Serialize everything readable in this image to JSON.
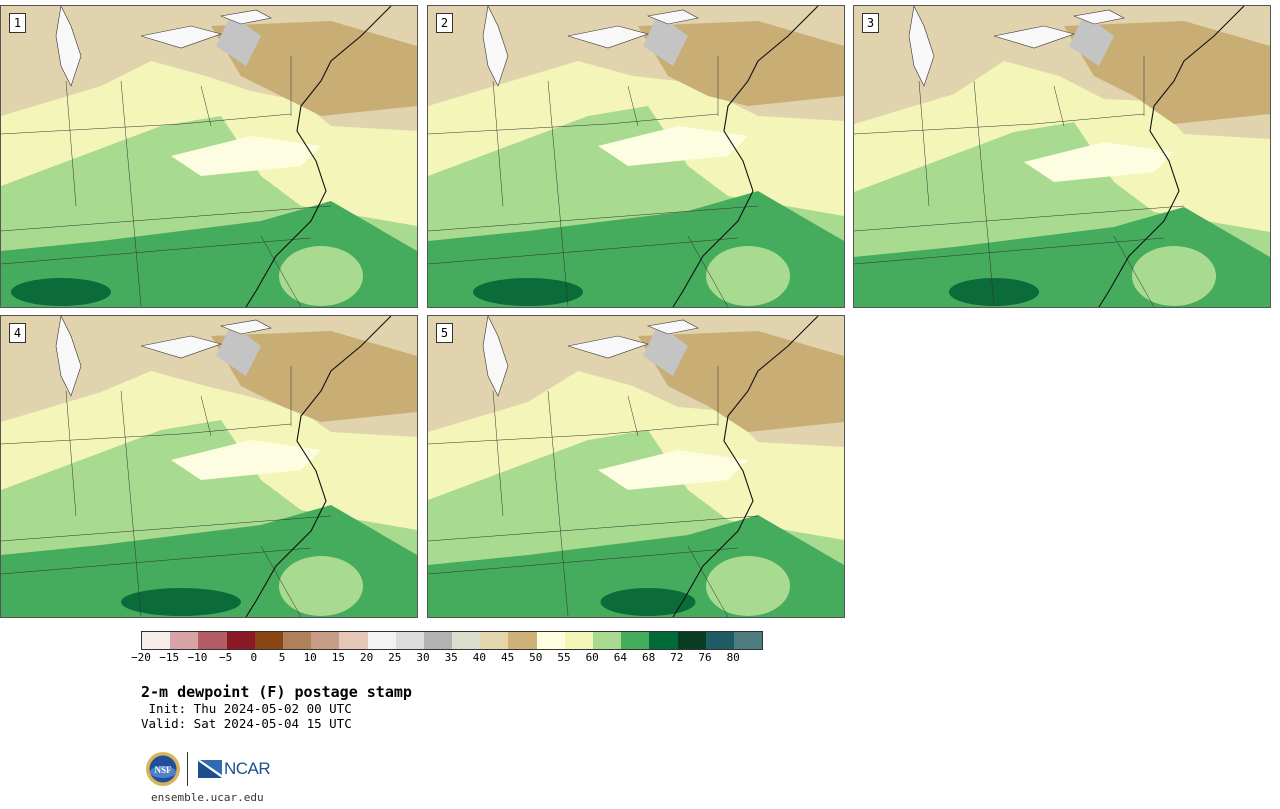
{
  "panels": [
    {
      "id": "1",
      "label": "1"
    },
    {
      "id": "2",
      "label": "2"
    },
    {
      "id": "3",
      "label": "3"
    },
    {
      "id": "4",
      "label": "4"
    },
    {
      "id": "5",
      "label": "5"
    }
  ],
  "colorbar": {
    "colors": [
      "#f6ece9",
      "#d6a3a6",
      "#b45c64",
      "#8a1826",
      "#8a4515",
      "#b0805b",
      "#c79e85",
      "#e5c7b8",
      "#f3f3f3",
      "#dcdcdc",
      "#b2b2b2",
      "#dcdccc",
      "#e3d6ab",
      "#cdb178",
      "#fdfde0",
      "#f3f6b6",
      "#a8da8f",
      "#45ab5d",
      "#006b39",
      "#083d24",
      "#1c5c62",
      "#4e7d80"
    ],
    "tick_labels": [
      "−20",
      "−15",
      "−10",
      "−5",
      "0",
      "5",
      "10",
      "15",
      "20",
      "25",
      "30",
      "35",
      "40",
      "45",
      "50",
      "55",
      "60",
      "64",
      "68",
      "72",
      "76",
      "80"
    ]
  },
  "title": "2-m dewpoint (F) postage stamp",
  "init": " Init: Thu 2024-05-02 00 UTC",
  "valid": "Valid: Sat 2024-05-04 15 UTC",
  "logos": {
    "nsf": "NSF",
    "ncar": "NCAR"
  },
  "url": "ensemble.ucar.edu"
}
